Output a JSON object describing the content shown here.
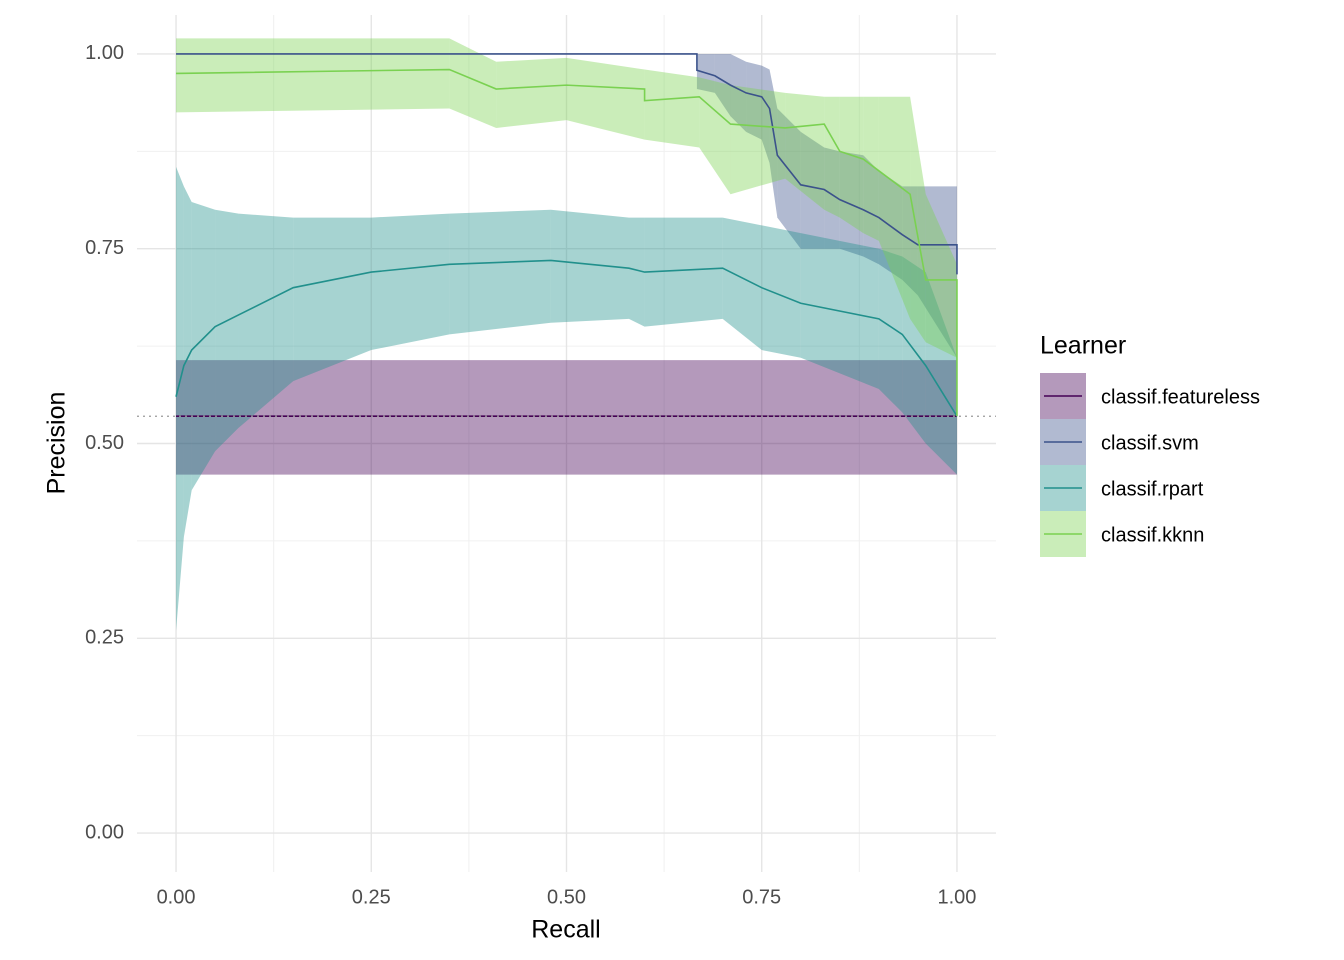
{
  "chart_data": {
    "type": "ribbon-line",
    "x_label": "Recall",
    "y_label": "Precision",
    "legend_title": "Learner",
    "legend_position": "right",
    "grid": true,
    "xlim": [
      -0.05,
      1.05
    ],
    "ylim": [
      -0.05,
      1.05
    ],
    "xticks": [
      {
        "value": 0,
        "label": "0.00"
      },
      {
        "value": 0.25,
        "label": "0.25"
      },
      {
        "value": 0.5,
        "label": "0.50"
      },
      {
        "value": 0.75,
        "label": "0.75"
      },
      {
        "value": 1,
        "label": "1.00"
      }
    ],
    "yticks": [
      {
        "value": 0,
        "label": "0.00"
      },
      {
        "value": 0.25,
        "label": "0.25"
      },
      {
        "value": 0.5,
        "label": "0.50"
      },
      {
        "value": 0.75,
        "label": "0.75"
      },
      {
        "value": 1,
        "label": "1.00"
      }
    ],
    "xminor": [
      0.125,
      0.375,
      0.625,
      0.875
    ],
    "yminor": [
      0.125,
      0.375,
      0.625,
      0.875
    ],
    "baseline": 0.535,
    "series": [
      {
        "name": "classif.featureless",
        "color": "#440154",
        "x": [
          0,
          1
        ],
        "values": [
          0.535,
          0.535
        ],
        "lower": [
          0.46,
          0.46
        ],
        "upper": [
          0.607,
          0.607
        ]
      },
      {
        "name": "classif.svm",
        "color": "#3b528b",
        "x": [
          0,
          0.667,
          0.667,
          0.69,
          0.71,
          0.73,
          0.75,
          0.76,
          0.77,
          0.8,
          0.83,
          0.85,
          0.88,
          0.9,
          0.93,
          0.95,
          1.0,
          1.0
        ],
        "values": [
          1,
          1,
          0.979,
          0.972,
          0.96,
          0.95,
          0.945,
          0.93,
          0.87,
          0.832,
          0.826,
          0.813,
          0.8,
          0.79,
          0.768,
          0.755,
          0.755,
          0.717
        ],
        "upper": [
          1,
          1,
          1.0,
          1.0,
          1.0,
          0.99,
          0.985,
          0.98,
          0.93,
          0.9,
          0.88,
          0.875,
          0.87,
          0.85,
          0.83,
          0.83,
          0.83,
          0.83
        ],
        "lower": [
          1,
          1,
          0.955,
          0.95,
          0.92,
          0.9,
          0.89,
          0.86,
          0.79,
          0.75,
          0.75,
          0.75,
          0.74,
          0.73,
          0.71,
          0.69,
          0.61,
          0.61
        ]
      },
      {
        "name": "classif.rpart",
        "color": "#21908c",
        "x": [
          0,
          0.01,
          0.02,
          0.05,
          0.08,
          0.15,
          0.25,
          0.35,
          0.48,
          0.58,
          0.6,
          0.7,
          0.75,
          0.8,
          0.9,
          0.93,
          0.96,
          1.0
        ],
        "values": [
          0.56,
          0.6,
          0.62,
          0.65,
          0.665,
          0.7,
          0.72,
          0.73,
          0.735,
          0.725,
          0.72,
          0.725,
          0.7,
          0.68,
          0.66,
          0.64,
          0.6,
          0.535
        ],
        "upper": [
          0.855,
          0.83,
          0.81,
          0.8,
          0.795,
          0.79,
          0.79,
          0.795,
          0.8,
          0.79,
          0.79,
          0.79,
          0.78,
          0.77,
          0.75,
          0.74,
          0.72,
          0.61
        ],
        "lower": [
          0.26,
          0.38,
          0.44,
          0.49,
          0.52,
          0.58,
          0.62,
          0.64,
          0.655,
          0.66,
          0.65,
          0.66,
          0.62,
          0.61,
          0.57,
          0.54,
          0.5,
          0.46
        ]
      },
      {
        "name": "classif.kknn",
        "color": "#7ad151",
        "x": [
          0,
          0.35,
          0.41,
          0.5,
          0.6,
          0.6,
          0.67,
          0.71,
          0.78,
          0.83,
          0.85,
          0.88,
          0.9,
          0.94,
          0.96,
          1.0,
          1.0
        ],
        "values": [
          0.975,
          0.98,
          0.955,
          0.96,
          0.955,
          0.94,
          0.945,
          0.91,
          0.905,
          0.91,
          0.875,
          0.865,
          0.85,
          0.82,
          0.71,
          0.71,
          0.535
        ],
        "upper": [
          1.02,
          1.02,
          0.99,
          0.995,
          0.98,
          0.98,
          0.97,
          0.96,
          0.95,
          0.945,
          0.945,
          0.945,
          0.945,
          0.945,
          0.82,
          0.73,
          0.73
        ],
        "lower": [
          0.925,
          0.93,
          0.905,
          0.915,
          0.89,
          0.89,
          0.88,
          0.82,
          0.84,
          0.8,
          0.79,
          0.77,
          0.76,
          0.66,
          0.63,
          0.61,
          0.61
        ]
      }
    ]
  }
}
